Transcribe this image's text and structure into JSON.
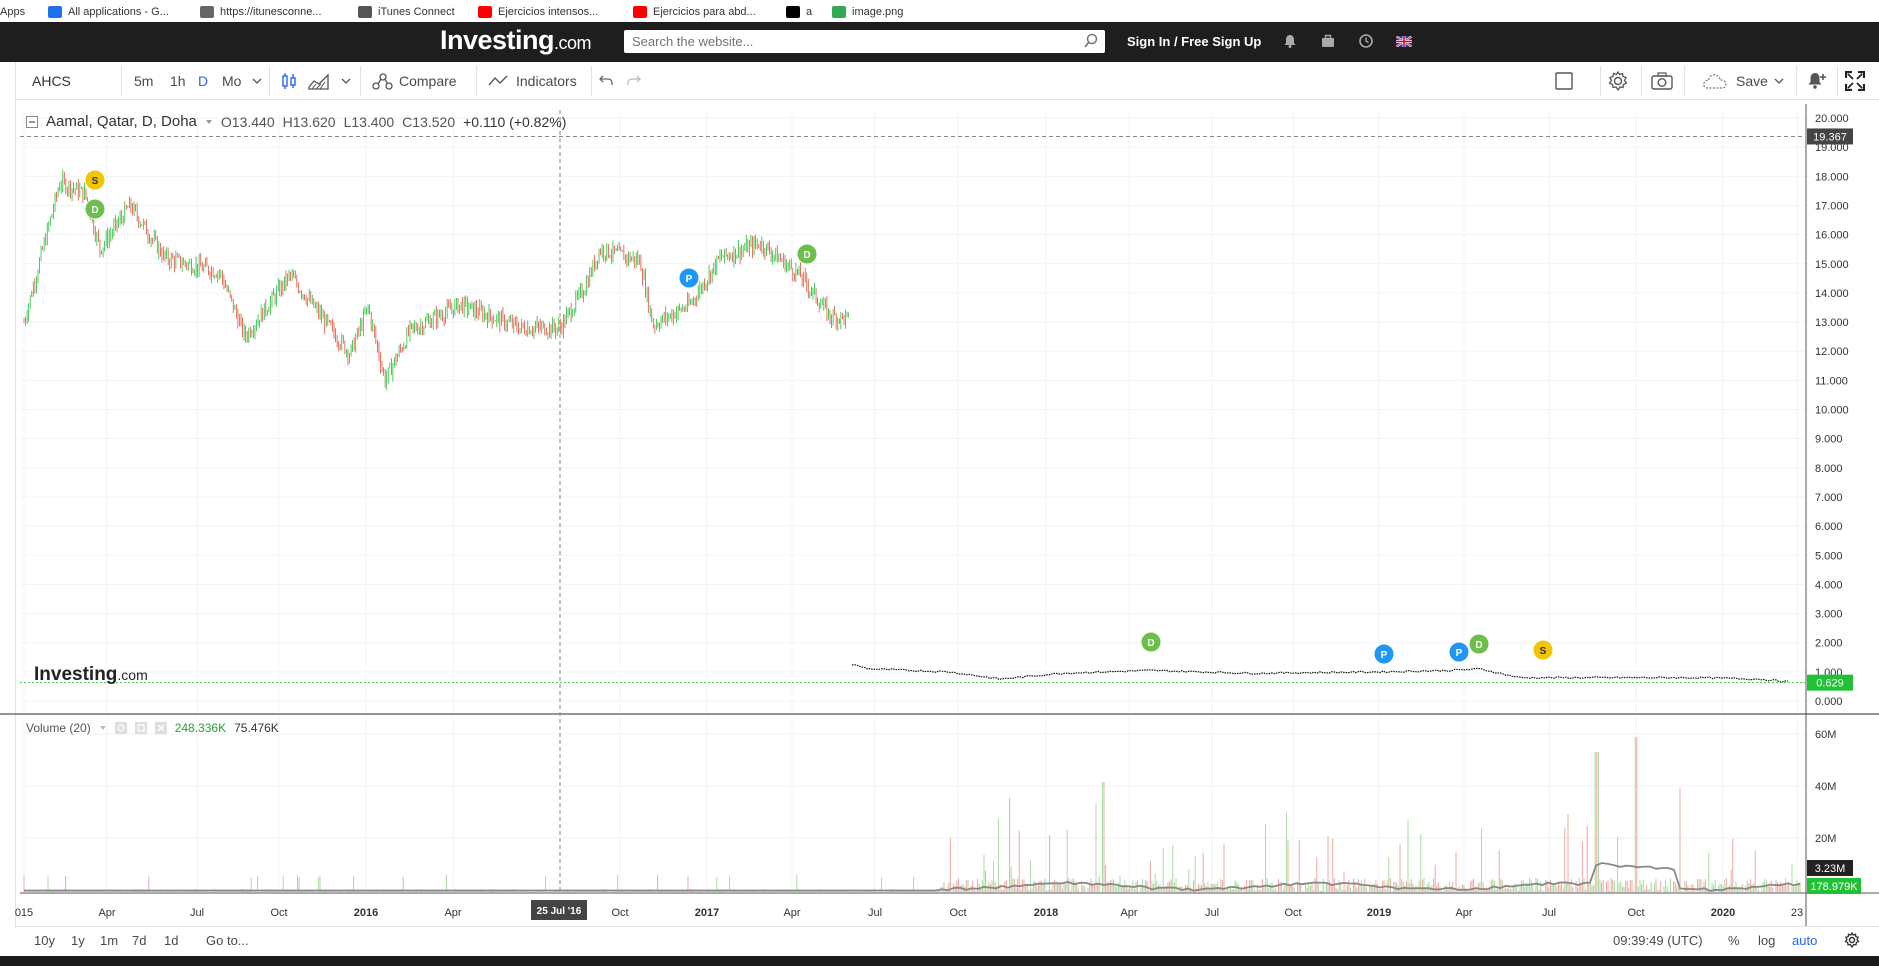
{
  "bookmarks": [
    {
      "label": "Apps",
      "icon": "apps-icon",
      "color": "#4285f4"
    },
    {
      "label": "All applications - G...",
      "icon": "app-store-icon",
      "color": "#1a73e8"
    },
    {
      "label": "https://itunesconne...",
      "icon": "globe-icon",
      "color": "#666666"
    },
    {
      "label": "iTunes Connect",
      "icon": "apple-icon",
      "color": "#555555"
    },
    {
      "label": "Ejercicios intensos...",
      "icon": "youtube-icon",
      "color": "#ff0000"
    },
    {
      "label": "Ejercicios para abd...",
      "icon": "youtube-icon",
      "color": "#ff0000"
    },
    {
      "label": "a",
      "icon": "investing-icon",
      "color": "#000000"
    },
    {
      "label": "image.png",
      "icon": "drive-icon",
      "color": "#34a853"
    }
  ],
  "header": {
    "logo": "Investing",
    "logo_suffix": ".com",
    "search_placeholder": "Search the website...",
    "signin": "Sign In / Free Sign Up"
  },
  "toolbar": {
    "symbol": "AHCS",
    "intervals": [
      "5m",
      "1h",
      "D",
      "Mo"
    ],
    "active_interval": "D",
    "compare": "Compare",
    "indicators": "Indicators",
    "save": "Save"
  },
  "legend": {
    "title": "Aamal, Qatar, D, Doha",
    "open": "O13.440",
    "high": "H13.620",
    "low": "L13.400",
    "close": "C13.520",
    "change": "+0.110 (+0.82%)"
  },
  "volume_legend": {
    "title": "Volume (20)",
    "value1": "248.336K",
    "value2": "75.476K"
  },
  "watermark": {
    "main": "Investing",
    "suffix": ".com"
  },
  "price_axis": [
    "20.000",
    "19.000",
    "18.000",
    "17.000",
    "16.000",
    "15.000",
    "14.000",
    "13.000",
    "12.000",
    "11.000",
    "10.000",
    "9.000",
    "8.000",
    "7.000",
    "6.000",
    "5.000",
    "4.000",
    "3.000",
    "2.000",
    "1.000",
    "0.000"
  ],
  "price_labels": {
    "crosshair": "19.367",
    "last": "0.629"
  },
  "volume_axis": [
    "60M",
    "40M",
    "20M"
  ],
  "volume_labels": {
    "v1": "3.23M",
    "v2": "178.979K"
  },
  "time_axis": [
    {
      "label": "015",
      "bold": false
    },
    {
      "label": "Apr",
      "bold": false
    },
    {
      "label": "Jul",
      "bold": false
    },
    {
      "label": "Oct",
      "bold": false
    },
    {
      "label": "2016",
      "bold": true
    },
    {
      "label": "Apr",
      "bold": false
    },
    {
      "label": "Oct",
      "bold": false
    },
    {
      "label": "2017",
      "bold": true
    },
    {
      "label": "Apr",
      "bold": false
    },
    {
      "label": "Jul",
      "bold": false
    },
    {
      "label": "Oct",
      "bold": false
    },
    {
      "label": "2018",
      "bold": true
    },
    {
      "label": "Apr",
      "bold": false
    },
    {
      "label": "Jul",
      "bold": false
    },
    {
      "label": "Oct",
      "bold": false
    },
    {
      "label": "2019",
      "bold": true
    },
    {
      "label": "Apr",
      "bold": false
    },
    {
      "label": "Jul",
      "bold": false
    },
    {
      "label": "Oct",
      "bold": false
    },
    {
      "label": "2020",
      "bold": true
    },
    {
      "label": "23",
      "bold": false
    }
  ],
  "crosshair_date": "25 Jul '16",
  "events": [
    {
      "type": "S",
      "color": "#f5c400"
    },
    {
      "type": "D",
      "color": "#6cc04a"
    },
    {
      "type": "P",
      "color": "#2196f3"
    },
    {
      "type": "D",
      "color": "#6cc04a"
    },
    {
      "type": "D",
      "color": "#6cc04a"
    },
    {
      "type": "P",
      "color": "#2196f3"
    },
    {
      "type": "P",
      "color": "#2196f3"
    },
    {
      "type": "D",
      "color": "#6cc04a"
    },
    {
      "type": "S",
      "color": "#f5c400"
    }
  ],
  "bottom_bar": {
    "ranges": [
      "10y",
      "1y",
      "1m",
      "7d",
      "1d"
    ],
    "goto": "Go to...",
    "time": "09:39:49 (UTC)",
    "percent": "%",
    "log": "log",
    "auto": "auto"
  },
  "colors": {
    "up": "#26a69a",
    "up_green": "#21c136",
    "down": "#ef5350",
    "last_price_line": "#2ecc40",
    "accent_blue": "#2962ff"
  }
}
